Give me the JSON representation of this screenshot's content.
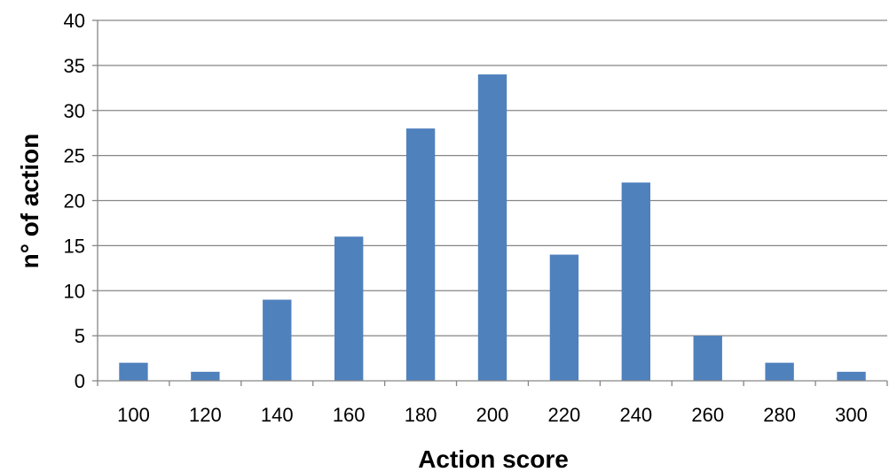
{
  "chart_data": {
    "type": "bar",
    "title": "",
    "xlabel": "Action score",
    "ylabel": "n° of action",
    "categories": [
      "100",
      "120",
      "140",
      "160",
      "180",
      "200",
      "220",
      "240",
      "260",
      "280",
      "300"
    ],
    "series": [
      {
        "values": [
          2,
          1,
          9,
          16,
          28,
          34,
          14,
          22,
          5,
          2,
          1
        ]
      }
    ],
    "ylim": [
      0,
      40
    ],
    "yticks": [
      0,
      5,
      10,
      15,
      20,
      25,
      30,
      35,
      40
    ],
    "grid": "horizontal",
    "legend": "none",
    "colors": {
      "bar": "#4F81BD",
      "grid": "#868686",
      "axis": "#868686"
    }
  }
}
